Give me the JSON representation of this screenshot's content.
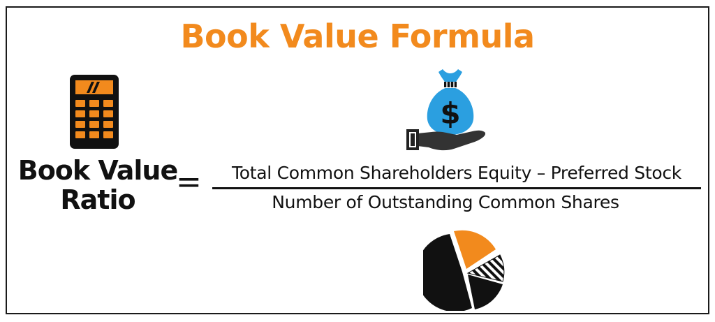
{
  "title": "Book Value Formula",
  "formula": {
    "lhs_line1": "Book Value",
    "lhs_line2": "Ratio",
    "operator": "=",
    "numerator": "Total Common Shareholders Equity – Preferred Stock",
    "denominator": "Number of Outstanding Common Shares"
  },
  "icons": {
    "calculator": "calculator-icon",
    "money_bag_hand": "money-bag-hand-icon",
    "pie_chart": "pie-chart-icon"
  },
  "colors": {
    "accent": "#f28a1d",
    "bag": "#2b9fe0",
    "dark": "#111111"
  }
}
